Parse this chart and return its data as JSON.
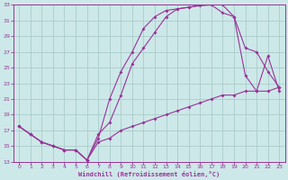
{
  "xlabel": "Windchill (Refroidissement éolien,°C)",
  "xlim": [
    -0.5,
    23.5
  ],
  "ylim": [
    13,
    33
  ],
  "xticks": [
    0,
    1,
    2,
    3,
    4,
    5,
    6,
    7,
    8,
    9,
    10,
    11,
    12,
    13,
    14,
    15,
    16,
    17,
    18,
    19,
    20,
    21,
    22,
    23
  ],
  "yticks": [
    13,
    15,
    17,
    19,
    21,
    23,
    25,
    27,
    29,
    31,
    33
  ],
  "background_color": "#cde8e8",
  "grid_color": "#aacccc",
  "line_color": "#993399",
  "curve1_x": [
    0,
    1,
    2,
    3,
    4,
    5,
    6,
    7,
    8,
    9,
    10,
    11,
    12,
    13,
    14,
    15,
    16,
    17,
    18,
    19,
    20,
    21,
    22,
    23
  ],
  "curve1_y": [
    17.5,
    16.5,
    15.5,
    15.0,
    14.5,
    14.5,
    13.2,
    16.5,
    18.0,
    21.5,
    25.5,
    27.5,
    29.5,
    31.5,
    32.5,
    32.7,
    32.9,
    33.0,
    33.0,
    31.5,
    27.5,
    27.0,
    24.5,
    22.5
  ],
  "curve2_x": [
    0,
    1,
    2,
    3,
    4,
    5,
    6,
    7,
    8,
    9,
    10,
    11,
    12,
    13,
    14,
    15,
    16,
    17,
    18,
    19,
    20,
    21,
    22,
    23
  ],
  "curve2_y": [
    17.5,
    16.5,
    15.5,
    15.0,
    14.5,
    14.5,
    13.2,
    16.0,
    21.0,
    24.5,
    27.0,
    30.0,
    31.5,
    32.3,
    32.5,
    32.7,
    33.0,
    33.0,
    32.0,
    31.5,
    24.0,
    22.0,
    26.5,
    22.0
  ],
  "curve3_x": [
    0,
    1,
    2,
    3,
    4,
    5,
    6,
    7,
    8,
    9,
    10,
    11,
    12,
    13,
    14,
    15,
    16,
    17,
    18,
    19,
    20,
    21,
    22,
    23
  ],
  "curve3_y": [
    17.5,
    16.5,
    15.5,
    15.0,
    14.5,
    14.5,
    13.2,
    15.5,
    16.0,
    17.0,
    17.5,
    18.0,
    18.5,
    19.0,
    19.5,
    20.0,
    20.5,
    21.0,
    21.5,
    21.5,
    22.0,
    22.0,
    22.0,
    22.5
  ]
}
